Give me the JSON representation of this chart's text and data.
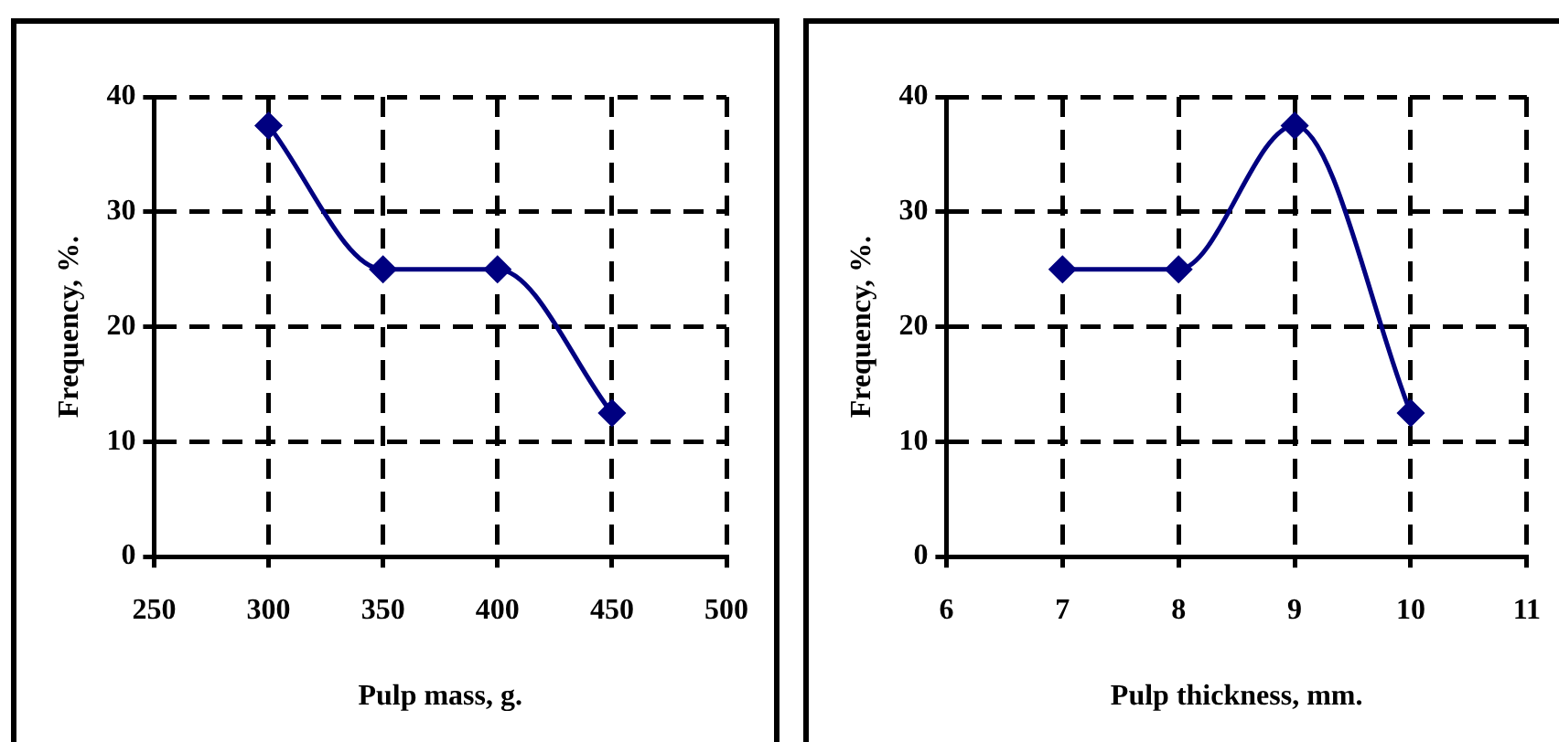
{
  "chart_data": [
    {
      "type": "line",
      "xlabel": "Pulp mass, g.",
      "ylabel": "Frequency, %.",
      "x": [
        300,
        350,
        400,
        450
      ],
      "series": [
        {
          "color": "#000080",
          "values": [
            37.5,
            25,
            25,
            12.5
          ]
        }
      ],
      "xlim": [
        250,
        500
      ],
      "xticks": [
        250,
        300,
        350,
        400,
        450,
        500
      ],
      "ylim": [
        0,
        40
      ],
      "yticks": [
        0,
        10,
        20,
        30,
        40
      ],
      "grid": true,
      "marker": "diamond",
      "line_style": "solid",
      "legend": false
    },
    {
      "type": "line",
      "xlabel": "Pulp thickness, mm.",
      "ylabel": "Frequency, %.",
      "x": [
        7,
        8,
        9,
        10
      ],
      "series": [
        {
          "color": "#000080",
          "values": [
            25,
            25,
            37.5,
            12.5
          ]
        }
      ],
      "xlim": [
        6,
        11
      ],
      "xticks": [
        6,
        7,
        8,
        9,
        10,
        11
      ],
      "ylim": [
        0,
        40
      ],
      "yticks": [
        0,
        10,
        20,
        30,
        40
      ],
      "grid": true,
      "marker": "diamond",
      "line_style": "solid",
      "legend": false
    }
  ]
}
